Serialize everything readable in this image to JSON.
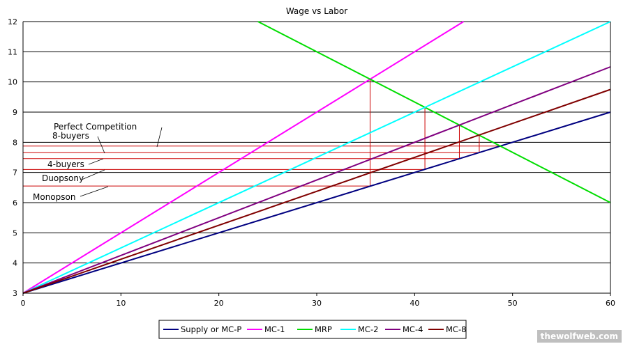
{
  "chart_data": {
    "type": "line",
    "title": "Wage vs Labor",
    "xlabel": "",
    "ylabel": "",
    "xlim": [
      0,
      60
    ],
    "ylim": [
      3,
      12
    ],
    "xticks": [
      0,
      10,
      20,
      30,
      40,
      50,
      60
    ],
    "yticks": [
      3,
      4,
      5,
      6,
      7,
      8,
      9,
      10,
      11,
      12
    ],
    "grid": "horizontal",
    "legend_position": "bottom",
    "series": [
      {
        "name": "Supply or MC-P",
        "color": "#000080",
        "x": [
          0,
          60
        ],
        "y": [
          3,
          9
        ]
      },
      {
        "name": "MC-1",
        "color": "#ff00ff",
        "x": [
          0,
          45
        ],
        "y": [
          3,
          12
        ]
      },
      {
        "name": "MRP",
        "color": "#00dd00",
        "x": [
          24,
          60
        ],
        "y": [
          12,
          6
        ]
      },
      {
        "name": "MC-2",
        "color": "#00ffff",
        "x": [
          0,
          60
        ],
        "y": [
          3,
          12
        ]
      },
      {
        "name": "MC-4",
        "color": "#800080",
        "x": [
          0,
          60
        ],
        "y": [
          3,
          10.5
        ]
      },
      {
        "name": "MC-8",
        "color": "#800000",
        "x": [
          0,
          60
        ],
        "y": [
          3,
          9.75
        ]
      }
    ],
    "equilibria": [
      {
        "label": "Monopson",
        "labor": 35.45,
        "wage": 6.55,
        "mrp": 10.09
      },
      {
        "label": "Duopsony",
        "labor": 41.05,
        "wage": 7.1,
        "mrp": 9.16
      },
      {
        "label": "4-buyers",
        "labor": 44.57,
        "wage": 7.46,
        "mrp": 8.57
      },
      {
        "label": "8-buyers",
        "labor": 46.6,
        "wage": 7.66,
        "mrp": 8.23
      },
      {
        "label": "Perfect Competition",
        "labor": 48.75,
        "wage": 7.875,
        "mrp": 7.875
      }
    ],
    "reference_line_color": "#cc0000"
  },
  "watermark": "thewolfweb.com"
}
